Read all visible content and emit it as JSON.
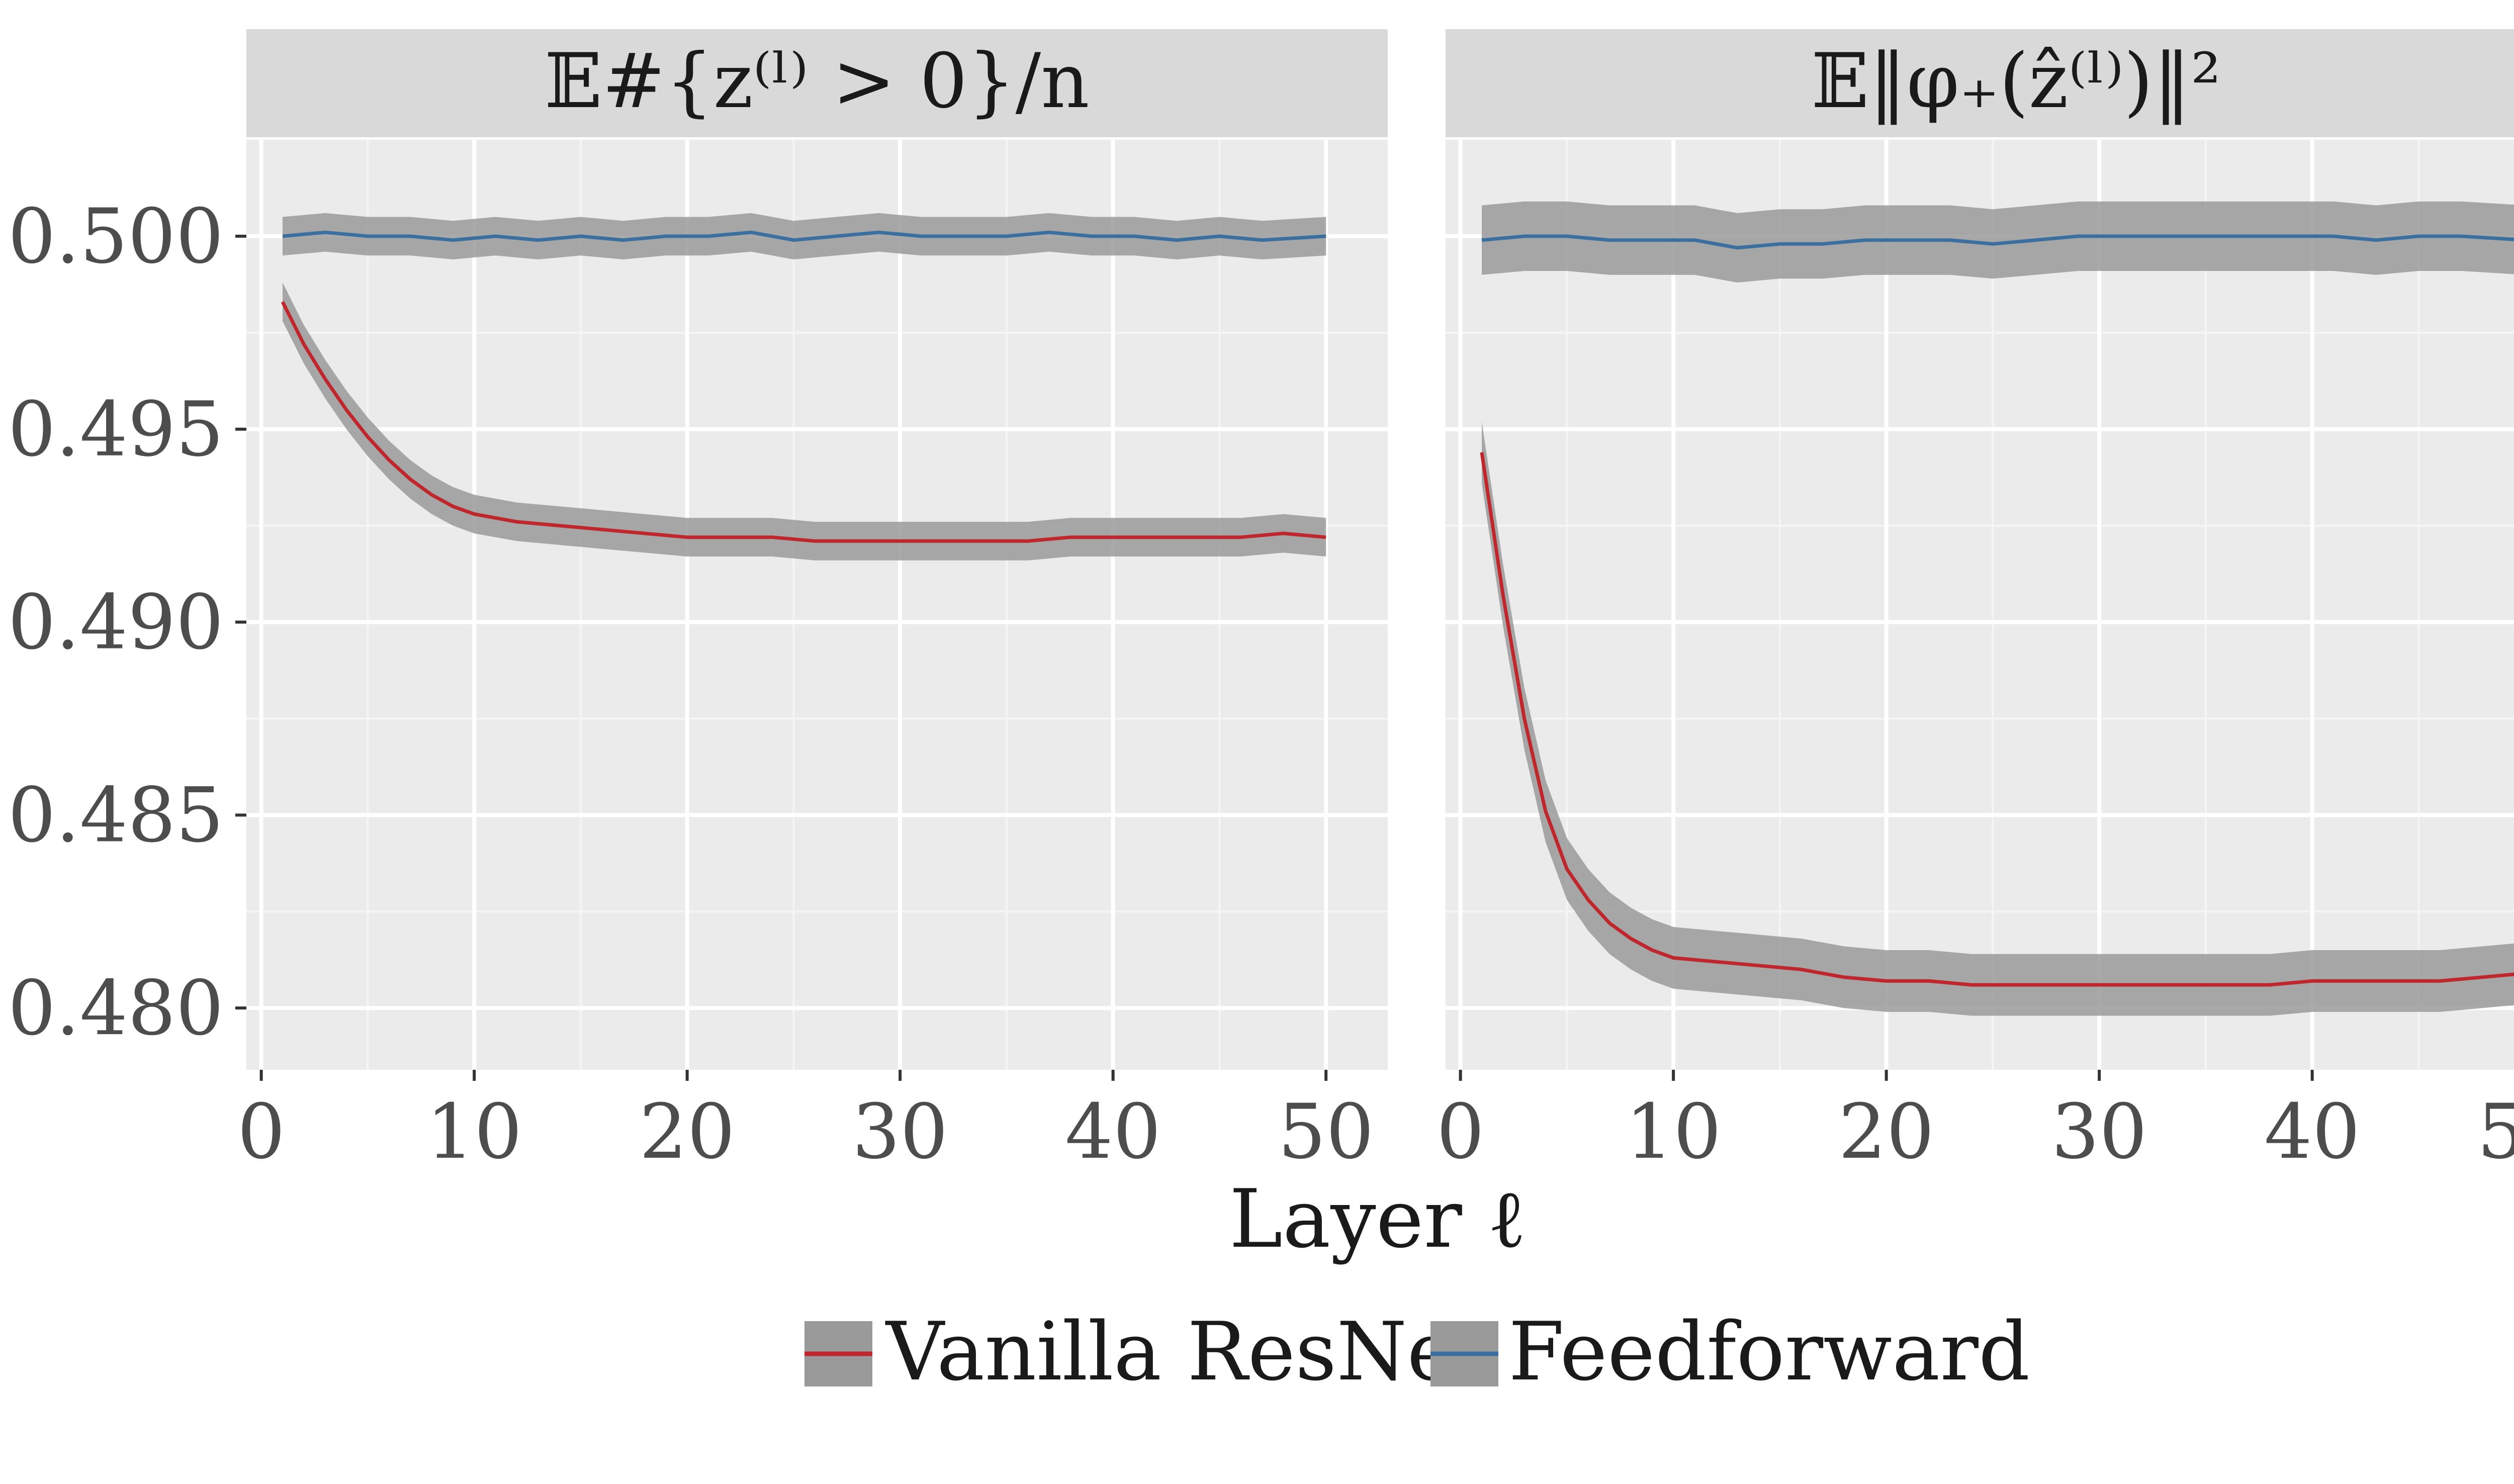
{
  "chart_data": {
    "type": "line",
    "facet_layout": "1x2",
    "xlabel": "Layer ℓ",
    "xlim": [
      0,
      52
    ],
    "ylim": [
      0.4784,
      0.5025
    ],
    "x_ticks": [
      0,
      10,
      20,
      30,
      40,
      50
    ],
    "x_tick_labels": [
      "0",
      "10",
      "20",
      "30",
      "40",
      "50"
    ],
    "y_ticks": [
      0.48,
      0.485,
      0.49,
      0.495,
      0.5
    ],
    "y_tick_labels": [
      "0.480",
      "0.485",
      "0.490",
      "0.495",
      "0.500"
    ],
    "grid": true,
    "legend_position": "bottom",
    "legend_entries": [
      "Vanilla ResNet",
      "Feedforward"
    ],
    "series_colors": {
      "Vanilla ResNet": "#c0272d",
      "Feedforward": "#3b6fa0"
    },
    "band_color": "#9a9a9a",
    "panels": [
      {
        "title": "𝔼#{z⁽ˡ⁾ > 0}/n",
        "series": [
          {
            "name": "Vanilla ResNet",
            "x": [
              1,
              2,
              3,
              4,
              5,
              6,
              7,
              8,
              9,
              10,
              12,
              14,
              16,
              18,
              20,
              22,
              24,
              26,
              28,
              30,
              32,
              34,
              36,
              38,
              40,
              42,
              44,
              46,
              48,
              50
            ],
            "values": [
              0.4983,
              0.4972,
              0.4963,
              0.4955,
              0.4948,
              0.4942,
              0.4937,
              0.4933,
              0.493,
              0.4928,
              0.4926,
              0.4925,
              0.4924,
              0.4923,
              0.4922,
              0.4922,
              0.4922,
              0.4921,
              0.4921,
              0.4921,
              0.4921,
              0.4921,
              0.4921,
              0.4922,
              0.4922,
              0.4922,
              0.4922,
              0.4922,
              0.4923,
              0.4922
            ],
            "band_halfwidth": 0.0005
          },
          {
            "name": "Feedforward",
            "x": [
              1,
              3,
              5,
              7,
              9,
              11,
              13,
              15,
              17,
              19,
              21,
              23,
              25,
              27,
              29,
              31,
              33,
              35,
              37,
              39,
              41,
              43,
              45,
              47,
              50
            ],
            "values": [
              0.5,
              0.5001,
              0.5,
              0.5,
              0.4999,
              0.5,
              0.4999,
              0.5,
              0.4999,
              0.5,
              0.5,
              0.5001,
              0.4999,
              0.5,
              0.5001,
              0.5,
              0.5,
              0.5,
              0.5001,
              0.5,
              0.5,
              0.4999,
              0.5,
              0.4999,
              0.5
            ],
            "band_halfwidth": 0.0005
          }
        ]
      },
      {
        "title": "𝔼‖φ₊(ẑ⁽ˡ⁾)‖²",
        "series": [
          {
            "name": "Vanilla ResNet",
            "x": [
              1,
              2,
              3,
              4,
              5,
              6,
              7,
              8,
              9,
              10,
              12,
              14,
              16,
              18,
              20,
              22,
              24,
              26,
              28,
              30,
              32,
              34,
              36,
              38,
              40,
              42,
              44,
              46,
              48,
              50
            ],
            "values": [
              0.4944,
              0.4907,
              0.4875,
              0.4851,
              0.4836,
              0.4828,
              0.4822,
              0.4818,
              0.4815,
              0.4813,
              0.4812,
              0.4811,
              0.481,
              0.4808,
              0.4807,
              0.4807,
              0.4806,
              0.4806,
              0.4806,
              0.4806,
              0.4806,
              0.4806,
              0.4806,
              0.4806,
              0.4807,
              0.4807,
              0.4807,
              0.4807,
              0.4808,
              0.4809
            ],
            "band_halfwidth": 0.0008
          },
          {
            "name": "Feedforward",
            "x": [
              1,
              3,
              5,
              7,
              9,
              11,
              13,
              15,
              17,
              19,
              21,
              23,
              25,
              27,
              29,
              31,
              33,
              35,
              37,
              39,
              41,
              43,
              45,
              47,
              50
            ],
            "values": [
              0.4999,
              0.5,
              0.5,
              0.4999,
              0.4999,
              0.4999,
              0.4997,
              0.4998,
              0.4998,
              0.4999,
              0.4999,
              0.4999,
              0.4998,
              0.4999,
              0.5,
              0.5,
              0.5,
              0.5,
              0.5,
              0.5,
              0.5,
              0.4999,
              0.5,
              0.5,
              0.4999
            ],
            "band_halfwidth": 0.0009
          }
        ]
      }
    ]
  }
}
